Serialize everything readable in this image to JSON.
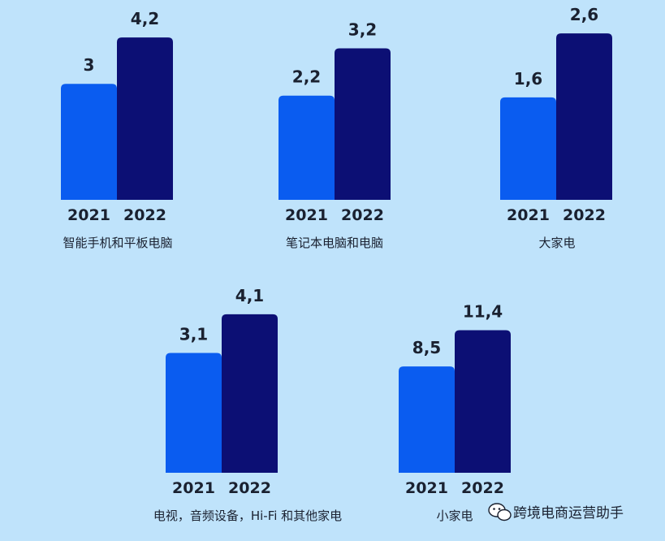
{
  "chart_data": [
    {
      "type": "bar",
      "title": "",
      "category": "智能手机和平板电脑",
      "categories": [
        "2021",
        "2022"
      ],
      "values": [
        3,
        4.2
      ],
      "labels": [
        "3",
        "4,2"
      ]
    },
    {
      "type": "bar",
      "title": "",
      "category": "笔记本电脑和电脑",
      "categories": [
        "2021",
        "2022"
      ],
      "values": [
        2.2,
        3.2
      ],
      "labels": [
        "2,2",
        "3,2"
      ]
    },
    {
      "type": "bar",
      "title": "",
      "category": "大家电",
      "categories": [
        "2021",
        "2022"
      ],
      "values": [
        1.6,
        2.6
      ],
      "labels": [
        "1,6",
        "2,6"
      ]
    },
    {
      "type": "bar",
      "title": "",
      "category": "电视，音频设备，Hi-Fi 和其他家电",
      "categories": [
        "2021",
        "2022"
      ],
      "values": [
        3.1,
        4.1
      ],
      "labels": [
        "3,1",
        "4,1"
      ]
    },
    {
      "type": "bar",
      "title": "",
      "category": "小家电",
      "categories": [
        "2021",
        "2022"
      ],
      "values": [
        8.5,
        11.4
      ],
      "labels": [
        "8,5",
        "11,4"
      ]
    }
  ],
  "colors": {
    "bar_2021": "#0a5cf0",
    "bar_2022": "#0c0f74",
    "background": "#bfe3fb"
  },
  "watermark": {
    "text": "跨境电商运营助手",
    "icon": "wechat-icon"
  }
}
